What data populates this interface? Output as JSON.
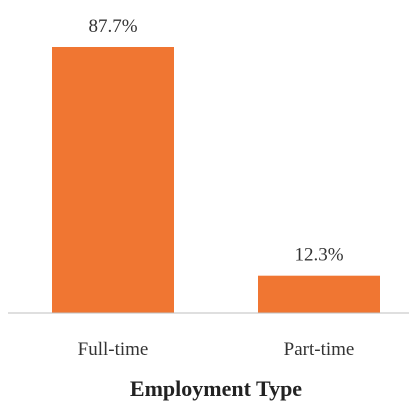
{
  "chart_data": {
    "type": "bar",
    "categories": [
      "Full-time",
      "Part-time"
    ],
    "values": [
      87.7,
      12.3
    ],
    "data_labels": [
      "87.7%",
      "12.3%"
    ],
    "title": "",
    "xlabel": "Employment Type",
    "ylabel": "",
    "ylim": [
      0,
      87.7
    ],
    "grid": false,
    "legend": "none",
    "colors": {
      "bar": "#F07632",
      "axis": "#bfbfbf"
    }
  }
}
